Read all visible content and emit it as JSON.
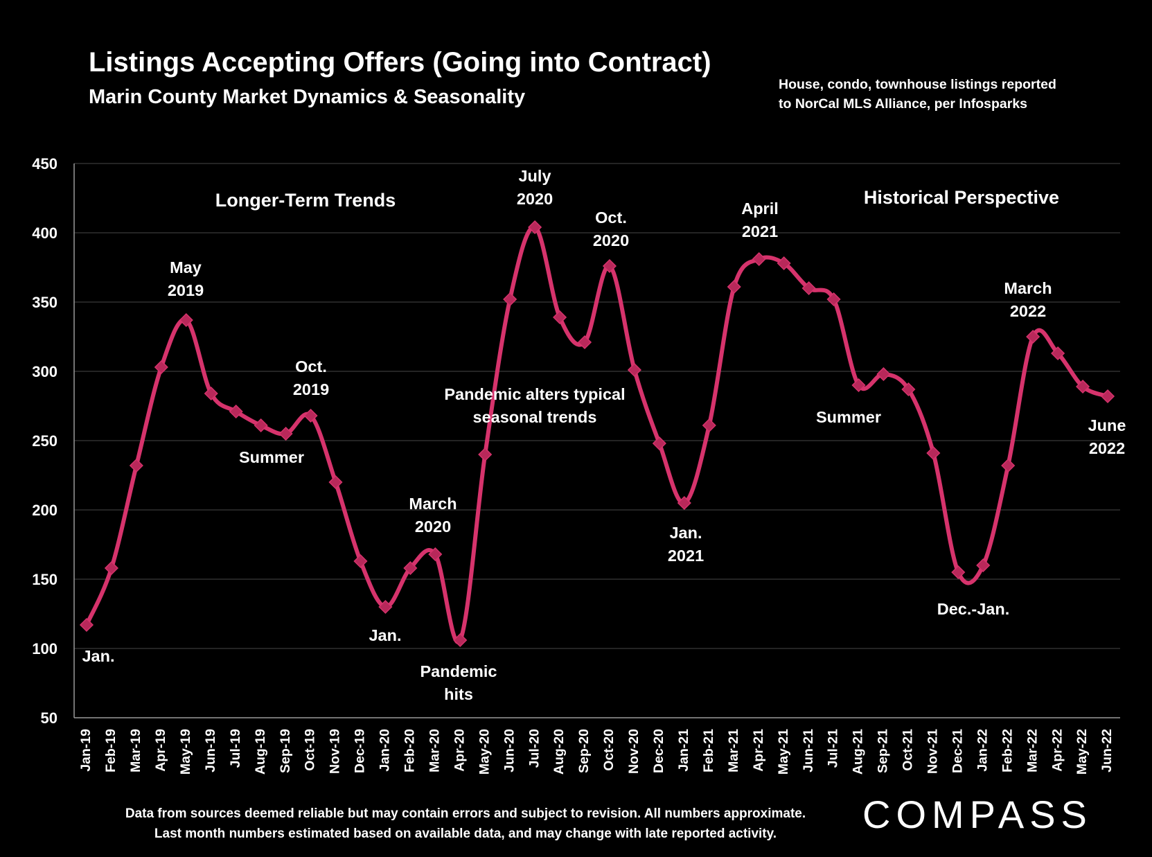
{
  "header": {
    "title": "Listings Accepting Offers (Going into Contract)",
    "subtitle": "Marin County Market Dynamics & Seasonality",
    "source_note_line1": "House, condo, townhouse listings reported",
    "source_note_line2": "to NorCal MLS Alliance, per Infosparks"
  },
  "footer": {
    "line1": "Data from sources deemed reliable but may contain errors and subject to revision. All numbers approximate.",
    "line2": "Last month numbers estimated based on available data, and may change with late reported activity."
  },
  "logo": {
    "text": "COMPASS"
  },
  "colors": {
    "background": "#000000",
    "line": "#d6336c",
    "text": "#ffffff",
    "grid": "#3a3a3a"
  },
  "chart_data": {
    "type": "line",
    "title": "Listings Accepting Offers (Going into Contract)",
    "subtitle": "Marin County Market Dynamics & Seasonality",
    "xlabel": "",
    "ylabel": "",
    "ylim": [
      50,
      450
    ],
    "yticks": [
      50,
      100,
      150,
      200,
      250,
      300,
      350,
      400,
      450
    ],
    "grid": true,
    "marker": "diamond",
    "categories": [
      "Jan-19",
      "Feb-19",
      "Mar-19",
      "Apr-19",
      "May-19",
      "Jun-19",
      "Jul-19",
      "Aug-19",
      "Sep-19",
      "Oct-19",
      "Nov-19",
      "Dec-19",
      "Jan-20",
      "Feb-20",
      "Mar-20",
      "Apr-20",
      "May-20",
      "Jun-20",
      "Jul-20",
      "Aug-20",
      "Sep-20",
      "Oct-20",
      "Nov-20",
      "Dec-20",
      "Jan-21",
      "Feb-21",
      "Mar-21",
      "Apr-21",
      "May-21",
      "Jun-21",
      "Jul-21",
      "Aug-21",
      "Sep-21",
      "Oct-21",
      "Nov-21",
      "Dec-21",
      "Jan-22",
      "Feb-22",
      "Mar-22",
      "Apr-22",
      "May-22",
      "Jun-22"
    ],
    "series": [
      {
        "values": [
          117,
          158,
          232,
          303,
          337,
          284,
          271,
          261,
          255,
          268,
          220,
          163,
          130,
          158,
          168,
          106,
          240,
          352,
          404,
          339,
          321,
          376,
          301,
          248,
          205,
          261,
          361,
          381,
          378,
          360,
          352,
          290,
          298,
          287,
          241,
          155,
          160,
          232,
          325,
          313,
          289,
          282
        ]
      }
    ],
    "section_labels": [
      {
        "text": "Longer-Term Trends"
      },
      {
        "text": "Historical Perspective"
      }
    ],
    "annotations": [
      {
        "lines": [
          "May",
          "2019"
        ]
      },
      {
        "lines": [
          "Oct.",
          "2019"
        ]
      },
      {
        "lines": [
          "Summer"
        ]
      },
      {
        "lines": [
          "Jan."
        ]
      },
      {
        "lines": [
          "Jan."
        ]
      },
      {
        "lines": [
          "March",
          "2020"
        ]
      },
      {
        "lines": [
          "Pandemic",
          "hits"
        ]
      },
      {
        "lines": [
          "July",
          "2020"
        ]
      },
      {
        "lines": [
          "Oct.",
          "2020"
        ]
      },
      {
        "lines": [
          "Pandemic alters typical",
          "seasonal trends"
        ]
      },
      {
        "lines": [
          "Jan.",
          "2021"
        ]
      },
      {
        "lines": [
          "April",
          "2021"
        ]
      },
      {
        "lines": [
          "Summer"
        ]
      },
      {
        "lines": [
          "Dec.-Jan."
        ]
      },
      {
        "lines": [
          "March",
          "2022"
        ]
      },
      {
        "lines": [
          "June",
          "2022"
        ]
      }
    ]
  }
}
